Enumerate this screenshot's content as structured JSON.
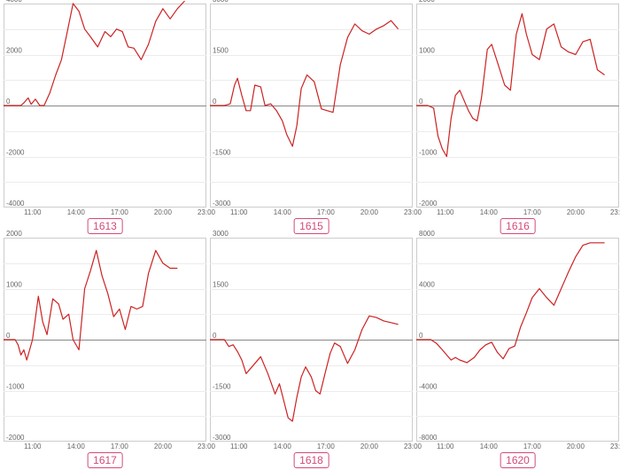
{
  "chart_data": [
    {
      "type": "line",
      "title": "1613",
      "x_ticks": [
        "11:00",
        "14:00",
        "17:00",
        "20:00",
        "23:00"
      ],
      "xlim": [
        9.0,
        23.0
      ],
      "y_ticks": [
        "4000",
        "2000",
        "0",
        "-2000",
        "-4000"
      ],
      "ylim": [
        -4000,
        4000
      ],
      "series_color": "#cc2222",
      "x": [
        9.0,
        9.4,
        9.8,
        10.2,
        10.4,
        10.7,
        10.9,
        11.2,
        11.5,
        11.8,
        12.2,
        12.6,
        13.0,
        13.4,
        13.8,
        14.2,
        14.6,
        15.0,
        15.5,
        16.0,
        16.4,
        16.8,
        17.2,
        17.6,
        18.0,
        18.5,
        19.0,
        19.5,
        20.0,
        20.5,
        21.0,
        21.5
      ],
      "y": [
        0,
        0,
        0,
        0,
        100,
        300,
        50,
        250,
        0,
        0,
        500,
        1200,
        1800,
        2900,
        4000,
        3700,
        3000,
        2700,
        2300,
        2900,
        2700,
        3000,
        2900,
        2300,
        2250,
        1800,
        2400,
        3300,
        3800,
        3400,
        3800,
        4100
      ]
    },
    {
      "type": "line",
      "title": "1615",
      "x_ticks": [
        "11:00",
        "14:00",
        "17:00",
        "20:00",
        "23:00"
      ],
      "xlim": [
        9.0,
        23.0
      ],
      "y_ticks": [
        "3000",
        "1500",
        "0",
        "-1500",
        "-3000"
      ],
      "ylim": [
        -3000,
        3000
      ],
      "series_color": "#cc2222",
      "x": [
        9.0,
        9.5,
        10.0,
        10.4,
        10.7,
        10.9,
        11.2,
        11.5,
        11.8,
        12.1,
        12.5,
        12.8,
        13.2,
        13.6,
        14.0,
        14.3,
        14.7,
        15.0,
        15.3,
        15.7,
        16.2,
        16.7,
        17.1,
        17.5,
        18.0,
        18.5,
        19.0,
        19.5,
        20.0,
        20.5,
        21.0,
        21.5,
        22.0
      ],
      "y": [
        0,
        0,
        0,
        50,
        600,
        800,
        300,
        -150,
        -150,
        600,
        550,
        0,
        50,
        -150,
        -450,
        -850,
        -1200,
        -600,
        500,
        900,
        700,
        -100,
        -150,
        -200,
        1200,
        2000,
        2400,
        2200,
        2100,
        2250,
        2350,
        2500,
        2250
      ]
    },
    {
      "type": "line",
      "title": "1616",
      "x_ticks": [
        "11:00",
        "14:00",
        "17:00",
        "20:00",
        "23:00"
      ],
      "xlim": [
        9.0,
        23.0
      ],
      "y_ticks": [
        "2000",
        "1000",
        "0",
        "-1000",
        "-2000"
      ],
      "ylim": [
        -2000,
        2000
      ],
      "series_color": "#cc2222",
      "x": [
        9.0,
        9.4,
        9.8,
        10.2,
        10.5,
        10.8,
        11.1,
        11.4,
        11.7,
        12.0,
        12.3,
        12.6,
        12.9,
        13.2,
        13.5,
        13.9,
        14.2,
        14.6,
        15.1,
        15.5,
        15.9,
        16.3,
        16.6,
        17.0,
        17.5,
        18.0,
        18.5,
        19.0,
        19.5,
        20.0,
        20.5,
        21.0,
        21.5,
        22.0
      ],
      "y": [
        0,
        0,
        0,
        -50,
        -600,
        -850,
        -1000,
        -250,
        200,
        300,
        100,
        -100,
        -250,
        -300,
        150,
        1100,
        1200,
        850,
        400,
        300,
        1400,
        1800,
        1400,
        1000,
        900,
        1500,
        1600,
        1150,
        1050,
        1000,
        1250,
        1300,
        700,
        600
      ]
    },
    {
      "type": "line",
      "title": "1617",
      "x_ticks": [
        "11:00",
        "14:00",
        "17:00",
        "20:00",
        "23:00"
      ],
      "xlim": [
        9.0,
        23.0
      ],
      "y_ticks": [
        "2000",
        "1000",
        "0",
        "-1000",
        "-2000"
      ],
      "ylim": [
        -2000,
        2000
      ],
      "series_color": "#cc2222",
      "x": [
        9.0,
        9.4,
        9.8,
        10.0,
        10.2,
        10.4,
        10.6,
        11.0,
        11.4,
        11.7,
        12.0,
        12.4,
        12.8,
        13.1,
        13.5,
        13.8,
        14.2,
        14.6,
        15.0,
        15.4,
        15.8,
        16.2,
        16.6,
        17.0,
        17.4,
        17.8,
        18.2,
        18.6,
        19.0,
        19.5,
        20.0,
        20.5,
        21.0
      ],
      "y": [
        0,
        0,
        0,
        -100,
        -300,
        -200,
        -400,
        0,
        850,
        350,
        100,
        800,
        700,
        400,
        500,
        0,
        -200,
        1000,
        1350,
        1750,
        1250,
        900,
        450,
        600,
        200,
        650,
        600,
        650,
        1300,
        1750,
        1500,
        1400,
        1400
      ]
    },
    {
      "type": "line",
      "title": "1618",
      "x_ticks": [
        "11:00",
        "14:00",
        "17:00",
        "20:00",
        "23:00"
      ],
      "xlim": [
        9.0,
        23.0
      ],
      "y_ticks": [
        "3000",
        "1500",
        "0",
        "-1500",
        "-3000"
      ],
      "ylim": [
        -3000,
        3000
      ],
      "series_color": "#cc2222",
      "x": [
        9.0,
        9.5,
        10.0,
        10.3,
        10.6,
        10.9,
        11.2,
        11.5,
        12.0,
        12.5,
        13.0,
        13.5,
        13.8,
        14.1,
        14.4,
        14.7,
        15.0,
        15.3,
        15.6,
        16.0,
        16.3,
        16.6,
        17.0,
        17.3,
        17.6,
        18.0,
        18.5,
        19.0,
        19.5,
        20.0,
        20.5,
        21.0,
        21.5,
        22.0
      ],
      "y": [
        0,
        0,
        0,
        -200,
        -150,
        -350,
        -600,
        -1000,
        -750,
        -500,
        -1000,
        -1600,
        -1300,
        -1800,
        -2300,
        -2400,
        -1700,
        -1100,
        -800,
        -1100,
        -1500,
        -1600,
        -900,
        -400,
        -100,
        -200,
        -700,
        -300,
        300,
        700,
        650,
        550,
        500,
        450
      ]
    },
    {
      "type": "line",
      "title": "1620",
      "x_ticks": [
        "11:00",
        "14:00",
        "17:00",
        "20:00",
        "23:00"
      ],
      "xlim": [
        9.0,
        23.0
      ],
      "y_ticks": [
        "8000",
        "4000",
        "0",
        "-4000",
        "-8000"
      ],
      "ylim": [
        -8000,
        8000
      ],
      "series_color": "#cc2222",
      "x": [
        9.0,
        9.5,
        10.0,
        10.4,
        10.8,
        11.1,
        11.4,
        11.7,
        12.0,
        12.5,
        13.0,
        13.4,
        13.8,
        14.2,
        14.6,
        15.0,
        15.4,
        15.8,
        16.2,
        16.6,
        17.0,
        17.5,
        18.0,
        18.5,
        19.0,
        19.5,
        20.0,
        20.5,
        21.0,
        21.5,
        22.0
      ],
      "y": [
        0,
        0,
        0,
        -300,
        -800,
        -1200,
        -1600,
        -1400,
        -1600,
        -1800,
        -1400,
        -800,
        -400,
        -200,
        -1000,
        -1500,
        -700,
        -500,
        1000,
        2100,
        3300,
        4000,
        3300,
        2700,
        4000,
        5300,
        6500,
        7400,
        7600,
        7600,
        7600
      ]
    }
  ]
}
